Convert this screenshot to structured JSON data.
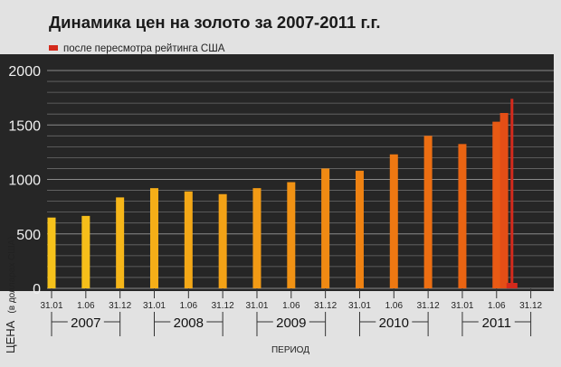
{
  "chart_data": {
    "type": "bar",
    "title": "Динамика цен на золото за 2007-2011 г.г.",
    "legend": {
      "label": "после пересмотра рейтинга США",
      "color": "#d42a1c"
    },
    "ylabel_main": "ЦЕНА",
    "ylabel_sub": "(в долларах США)",
    "xlabel": "ПЕРИОД",
    "ylim": [
      0,
      2000
    ],
    "yticks": [
      0,
      500,
      1000,
      1500,
      2000
    ],
    "tick_labels": [
      "31.01",
      "1.06",
      "31.12",
      "31.01",
      "1.06",
      "31.12",
      "31.01",
      "1.06",
      "31.12",
      "31.01",
      "1.06",
      "31.12",
      "31.01",
      "1.06",
      "31.12"
    ],
    "years": [
      "2007",
      "2008",
      "2009",
      "2010",
      "2011"
    ],
    "bars": [
      {
        "x": 0,
        "value": 650,
        "color": "#f6c21b"
      },
      {
        "x": 1,
        "value": 665,
        "color": "#f6be1a"
      },
      {
        "x": 2,
        "value": 835,
        "color": "#f6b619"
      },
      {
        "x": 3,
        "value": 920,
        "color": "#f5ae18"
      },
      {
        "x": 4,
        "value": 890,
        "color": "#f4a817"
      },
      {
        "x": 5,
        "value": 865,
        "color": "#f3a216"
      },
      {
        "x": 6,
        "value": 920,
        "color": "#f29a15"
      },
      {
        "x": 7,
        "value": 975,
        "color": "#f19214"
      },
      {
        "x": 8,
        "value": 1100,
        "color": "#f08a13"
      },
      {
        "x": 9,
        "value": 1080,
        "color": "#ef8212"
      },
      {
        "x": 10,
        "value": 1230,
        "color": "#ee7812"
      },
      {
        "x": 11,
        "value": 1400,
        "color": "#ec6e12"
      },
      {
        "x": 12,
        "value": 1325,
        "color": "#ea6412"
      },
      {
        "x": 13,
        "value": 1530,
        "color": "#e85a14"
      },
      {
        "x": 13.22,
        "value": 1610,
        "color": "#e44e16"
      },
      {
        "x": 13.45,
        "value": 1740,
        "color": "#d42a1c"
      }
    ]
  }
}
